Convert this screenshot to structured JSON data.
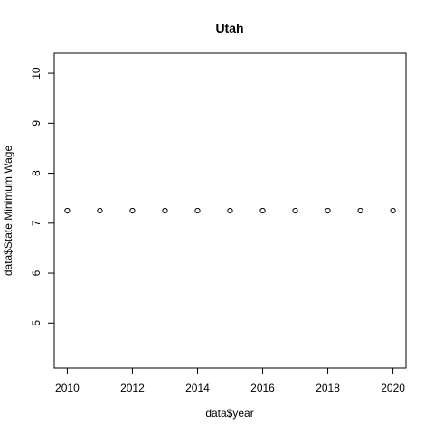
{
  "chart_data": {
    "type": "scatter",
    "title": "Utah",
    "xlabel": "data$year",
    "ylabel": "data$State.Minimum.Wage",
    "x": [
      2010,
      2011,
      2012,
      2013,
      2014,
      2015,
      2016,
      2017,
      2018,
      2019,
      2020
    ],
    "y": [
      7.25,
      7.25,
      7.25,
      7.25,
      7.25,
      7.25,
      7.25,
      7.25,
      7.25,
      7.25,
      7.25
    ],
    "xlim": [
      2009.6,
      2020.4
    ],
    "ylim": [
      4.1,
      10.4
    ],
    "x_ticks": [
      2010,
      2012,
      2014,
      2016,
      2018,
      2020
    ],
    "y_ticks": [
      5,
      6,
      7,
      8,
      9,
      10
    ],
    "marker": "open-circle",
    "marker_color": "#000000",
    "grid": false,
    "legend": "none"
  }
}
